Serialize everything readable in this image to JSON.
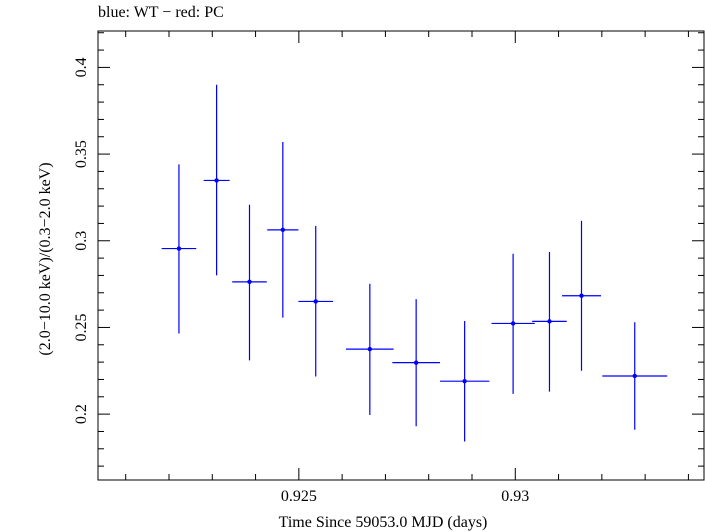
{
  "chart_data": {
    "type": "scatter",
    "title": "blue: WT − red: PC",
    "xlabel": "Time Since 59053.0 MJD (days)",
    "ylabel": "(2.0−10.0 keV)/(0.3−2.0 keV)",
    "xlim": [
      0.92036,
      0.93436
    ],
    "ylim": [
      0.162,
      0.421
    ],
    "x_ticks": [
      {
        "value": 0.925,
        "label": "0.925"
      },
      {
        "value": 0.93,
        "label": "0.93"
      }
    ],
    "y_ticks": [
      {
        "value": 0.2,
        "label": "0.2"
      },
      {
        "value": 0.25,
        "label": "0.25"
      },
      {
        "value": 0.3,
        "label": "0.3"
      },
      {
        "value": 0.35,
        "label": "0.35"
      },
      {
        "value": 0.4,
        "label": "0.4"
      }
    ],
    "grid": false,
    "series": [
      {
        "name": "WT",
        "color": "#0000ff",
        "points": [
          {
            "x": 0.92223,
            "xerr": 0.0004,
            "y": 0.2955,
            "ylo": 0.2465,
            "yhi": 0.3441
          },
          {
            "x": 0.9231,
            "xerr": 0.0003,
            "y": 0.3348,
            "ylo": 0.28,
            "yhi": 0.39
          },
          {
            "x": 0.92386,
            "xerr": 0.0004,
            "y": 0.2763,
            "ylo": 0.231,
            "yhi": 0.3208
          },
          {
            "x": 0.92463,
            "xerr": 0.00036,
            "y": 0.3063,
            "ylo": 0.2557,
            "yhi": 0.357
          },
          {
            "x": 0.92539,
            "xerr": 0.0004,
            "y": 0.265,
            "ylo": 0.2217,
            "yhi": 0.3085
          },
          {
            "x": 0.92664,
            "xerr": 0.00055,
            "y": 0.2375,
            "ylo": 0.1995,
            "yhi": 0.2752
          },
          {
            "x": 0.92771,
            "xerr": 0.00055,
            "y": 0.2297,
            "ylo": 0.193,
            "yhi": 0.2663
          },
          {
            "x": 0.92883,
            "xerr": 0.00057,
            "y": 0.219,
            "ylo": 0.1842,
            "yhi": 0.2537
          },
          {
            "x": 0.92995,
            "xerr": 0.0005,
            "y": 0.2523,
            "ylo": 0.2117,
            "yhi": 0.2925
          },
          {
            "x": 0.93079,
            "xerr": 0.0004,
            "y": 0.2535,
            "ylo": 0.213,
            "yhi": 0.2935
          },
          {
            "x": 0.93153,
            "xerr": 0.00045,
            "y": 0.2683,
            "ylo": 0.225,
            "yhi": 0.3115
          },
          {
            "x": 0.93276,
            "xerr": 0.00075,
            "y": 0.222,
            "ylo": 0.191,
            "yhi": 0.253
          }
        ]
      }
    ]
  }
}
